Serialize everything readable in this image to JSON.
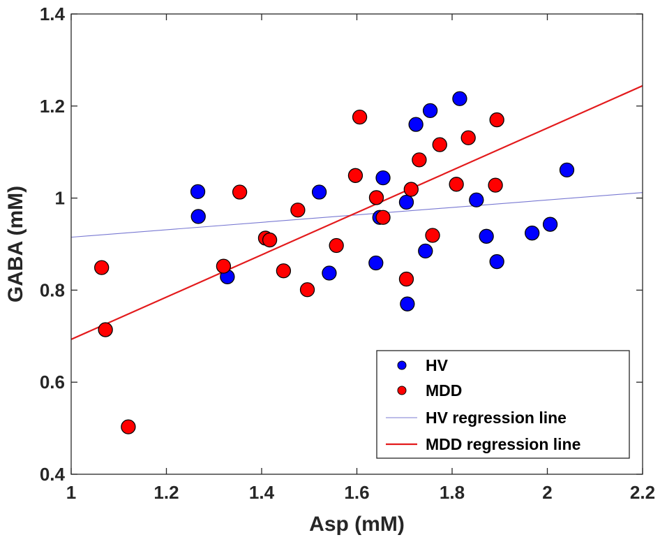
{
  "chart_data": {
    "type": "scatter",
    "title": "",
    "xlabel": "Asp (mM)",
    "ylabel": "GABA (mM)",
    "xlim": [
      1,
      2.2
    ],
    "ylim": [
      0.4,
      1.4
    ],
    "xticks": [
      1,
      1.2,
      1.4,
      1.6,
      1.8,
      2,
      2.2
    ],
    "xtick_labels": [
      "1",
      "1.2",
      "1.4",
      "1.6",
      "1.8",
      "2",
      "2.2"
    ],
    "yticks": [
      0.4,
      0.6,
      0.8,
      1,
      1.2,
      1.4
    ],
    "ytick_labels": [
      "0.4",
      "0.6",
      "0.8",
      "1",
      "1.2",
      "1.4"
    ],
    "grid": false,
    "legend_position": "bottom-right",
    "series": [
      {
        "name": "HV",
        "kind": "points",
        "color": "#0000ff",
        "points": [
          [
            1.266,
            1.014
          ],
          [
            1.267,
            0.96
          ],
          [
            1.328,
            0.829
          ],
          [
            1.521,
            1.013
          ],
          [
            1.542,
            0.837
          ],
          [
            1.64,
            0.859
          ],
          [
            1.648,
            0.958
          ],
          [
            1.655,
            1.044
          ],
          [
            1.704,
            0.991
          ],
          [
            1.706,
            0.77
          ],
          [
            1.724,
            1.16
          ],
          [
            1.744,
            0.885
          ],
          [
            1.754,
            1.19
          ],
          [
            1.816,
            1.216
          ],
          [
            1.851,
            0.996
          ],
          [
            1.872,
            0.917
          ],
          [
            1.894,
            0.862
          ],
          [
            1.968,
            0.924
          ],
          [
            2.006,
            0.943
          ],
          [
            2.041,
            1.061
          ]
        ]
      },
      {
        "name": "MDD",
        "kind": "points",
        "color": "#ff0000",
        "points": [
          [
            1.064,
            0.849
          ],
          [
            1.072,
            0.714
          ],
          [
            1.12,
            0.503
          ],
          [
            1.32,
            0.852
          ],
          [
            1.354,
            1.013
          ],
          [
            1.408,
            0.913
          ],
          [
            1.417,
            0.909
          ],
          [
            1.446,
            0.842
          ],
          [
            1.476,
            0.974
          ],
          [
            1.496,
            0.801
          ],
          [
            1.557,
            0.897
          ],
          [
            1.597,
            1.049
          ],
          [
            1.606,
            1.176
          ],
          [
            1.641,
            1.001
          ],
          [
            1.655,
            0.958
          ],
          [
            1.704,
            0.824
          ],
          [
            1.714,
            1.019
          ],
          [
            1.731,
            1.083
          ],
          [
            1.759,
            0.919
          ],
          [
            1.774,
            1.116
          ],
          [
            1.809,
            1.03
          ],
          [
            1.834,
            1.131
          ],
          [
            1.891,
            1.028
          ],
          [
            1.894,
            1.17
          ]
        ]
      },
      {
        "name": "HV regression line",
        "kind": "line",
        "color": "#7878d2",
        "x": [
          1,
          2.2
        ],
        "y": [
          0.915,
          1.012
        ]
      },
      {
        "name": "MDD regression line",
        "kind": "line",
        "color": "#e31a1c",
        "x": [
          1,
          2.2
        ],
        "y": [
          0.693,
          1.244
        ]
      }
    ],
    "legend": [
      {
        "label": "HV",
        "marker": "circle",
        "color": "#0000ff"
      },
      {
        "label": "MDD",
        "marker": "circle",
        "color": "#ff0000"
      },
      {
        "label": "HV regression line",
        "marker": "line",
        "color": "#7878d2"
      },
      {
        "label": "MDD regression line",
        "marker": "line",
        "color": "#e31a1c"
      }
    ]
  }
}
